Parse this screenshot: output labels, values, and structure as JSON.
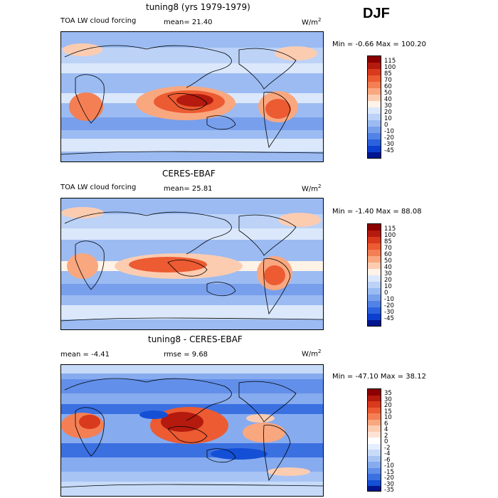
{
  "season": "DJF",
  "panels": [
    {
      "title": "tuning8 (yrs 1979-1979)",
      "variable": "TOA LW cloud forcing",
      "stat1": "mean=  21.40",
      "stat2": "",
      "units": "W/m",
      "minmax": "Min =  -0.66 Max = 100.20",
      "levels": [
        "115",
        "100",
        "85",
        "70",
        "60",
        "50",
        "40",
        "30",
        "20",
        "10",
        "0",
        "-10",
        "-20",
        "-30",
        "-45"
      ]
    },
    {
      "title": "CERES-EBAF",
      "variable": "TOA LW cloud forcing",
      "stat1": "mean=  25.81",
      "stat2": "",
      "units": "W/m",
      "minmax": "Min =  -1.40 Max =  88.08",
      "levels": [
        "115",
        "100",
        "85",
        "70",
        "60",
        "50",
        "40",
        "30",
        "20",
        "10",
        "0",
        "-10",
        "-20",
        "-30",
        "-45"
      ]
    },
    {
      "title": "tuning8 - CERES-EBAF",
      "variable": "mean =  -4.41",
      "stat1": "rmse =   9.68",
      "stat2": "",
      "units": "W/m",
      "minmax": "Min = -47.10 Max =  38.12",
      "levels": [
        "35",
        "30",
        "20",
        "15",
        "10",
        "6",
        "4",
        "2",
        "0",
        "-2",
        "-4",
        "-6",
        "-10",
        "-15",
        "-20",
        "-30",
        "-35"
      ]
    }
  ],
  "colors": {
    "abs_scale": [
      "#8b0000",
      "#b51a0e",
      "#d9391c",
      "#ec5b32",
      "#f47f54",
      "#f9a77f",
      "#fcccb1",
      "#fff2e6",
      "#dbe8fb",
      "#bcd2f7",
      "#9bbbf2",
      "#789fec",
      "#5282e6",
      "#2c62dd",
      "#0c3fcf",
      "#00168f"
    ],
    "diff_scale": [
      "#8b0000",
      "#b51a0e",
      "#d9391c",
      "#ec5b32",
      "#f47f54",
      "#f9a77f",
      "#fcccb1",
      "#fde3d3",
      "#ffffff",
      "#e4eefd",
      "#c7dbf9",
      "#a8c4f4",
      "#86abef",
      "#628fe9",
      "#3b70e1",
      "#1450d6",
      "#00168f"
    ]
  }
}
